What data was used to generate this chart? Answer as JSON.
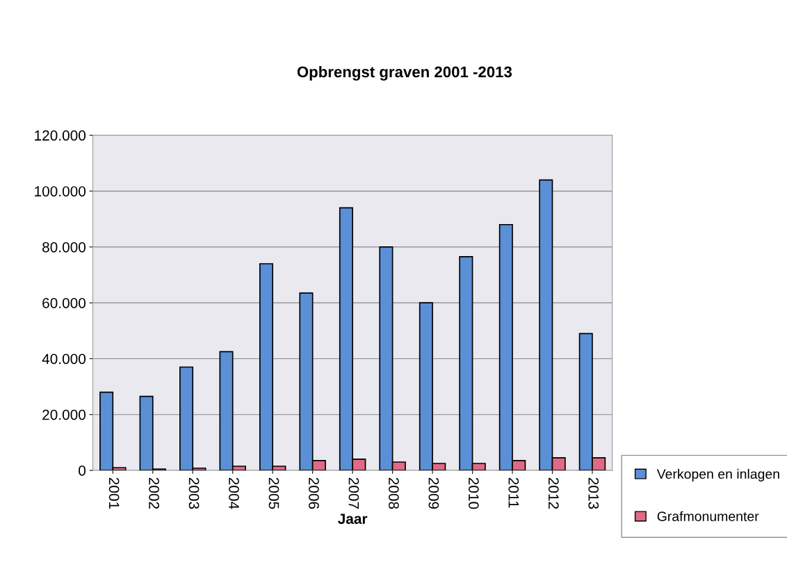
{
  "chart_data": {
    "type": "bar",
    "title": "Opbrengst graven 2001 -2013",
    "xlabel": "Jaar",
    "categories": [
      "2001",
      "2002",
      "2003",
      "2004",
      "2005",
      "2006",
      "2007",
      "2008",
      "2009",
      "2010",
      "2011",
      "2012",
      "2013"
    ],
    "series": [
      {
        "name": "Verkopen en inlagen",
        "color": "#5b8fd6",
        "values": [
          28000,
          26500,
          37000,
          42500,
          74000,
          63500,
          94000,
          80000,
          60000,
          76500,
          88000,
          104000,
          49000
        ]
      },
      {
        "name": "Grafmonumenter",
        "color": "#e06a85",
        "values": [
          1000,
          500,
          800,
          1500,
          1500,
          3500,
          4000,
          3000,
          2500,
          2500,
          3500,
          4500,
          4500
        ]
      }
    ],
    "ylim": [
      0,
      120000
    ],
    "yticks": [
      {
        "value": 0,
        "label": "0"
      },
      {
        "value": 20000,
        "label": "20.000"
      },
      {
        "value": 40000,
        "label": "40.000"
      },
      {
        "value": 60000,
        "label": "60.000"
      },
      {
        "value": 80000,
        "label": "80.000"
      },
      {
        "value": 100000,
        "label": "100.000"
      },
      {
        "value": 120000,
        "label": "120.000"
      }
    ],
    "grid": "y",
    "legend": "bottom right"
  }
}
